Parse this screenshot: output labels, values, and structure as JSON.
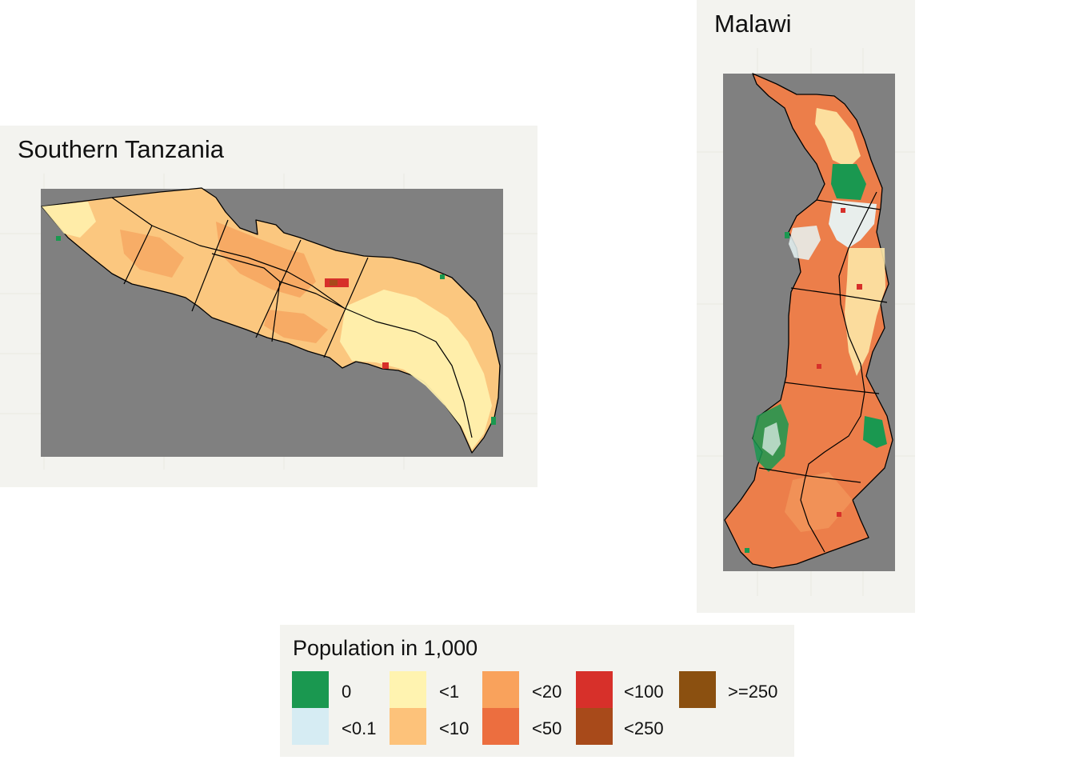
{
  "maps": {
    "tanzania": {
      "title": "Southern Tanzania",
      "background_color": "#808080",
      "panel_color": "#f3f3ef",
      "dominant_category": "<10",
      "regions_count": 9
    },
    "malawi": {
      "title": "Malawi",
      "background_color": "#808080",
      "panel_color": "#f3f3ef",
      "dominant_category": "<50",
      "regions_count": 5
    }
  },
  "legend": {
    "title": "Population in 1,000",
    "items": [
      {
        "label": "0",
        "color": "#1a9850"
      },
      {
        "label": "<0.1",
        "color": "#d6ecf3"
      },
      {
        "label": "<1",
        "color": "#fff3b0"
      },
      {
        "label": "<10",
        "color": "#fdc27a"
      },
      {
        "label": "<20",
        "color": "#f9a25c"
      },
      {
        "label": "<50",
        "color": "#ec6e3f"
      },
      {
        "label": "<100",
        "color": "#d7302a"
      },
      {
        "label": "<250",
        "color": "#a84a1a"
      },
      {
        "label": ">=250",
        "color": "#8b5010"
      }
    ]
  }
}
